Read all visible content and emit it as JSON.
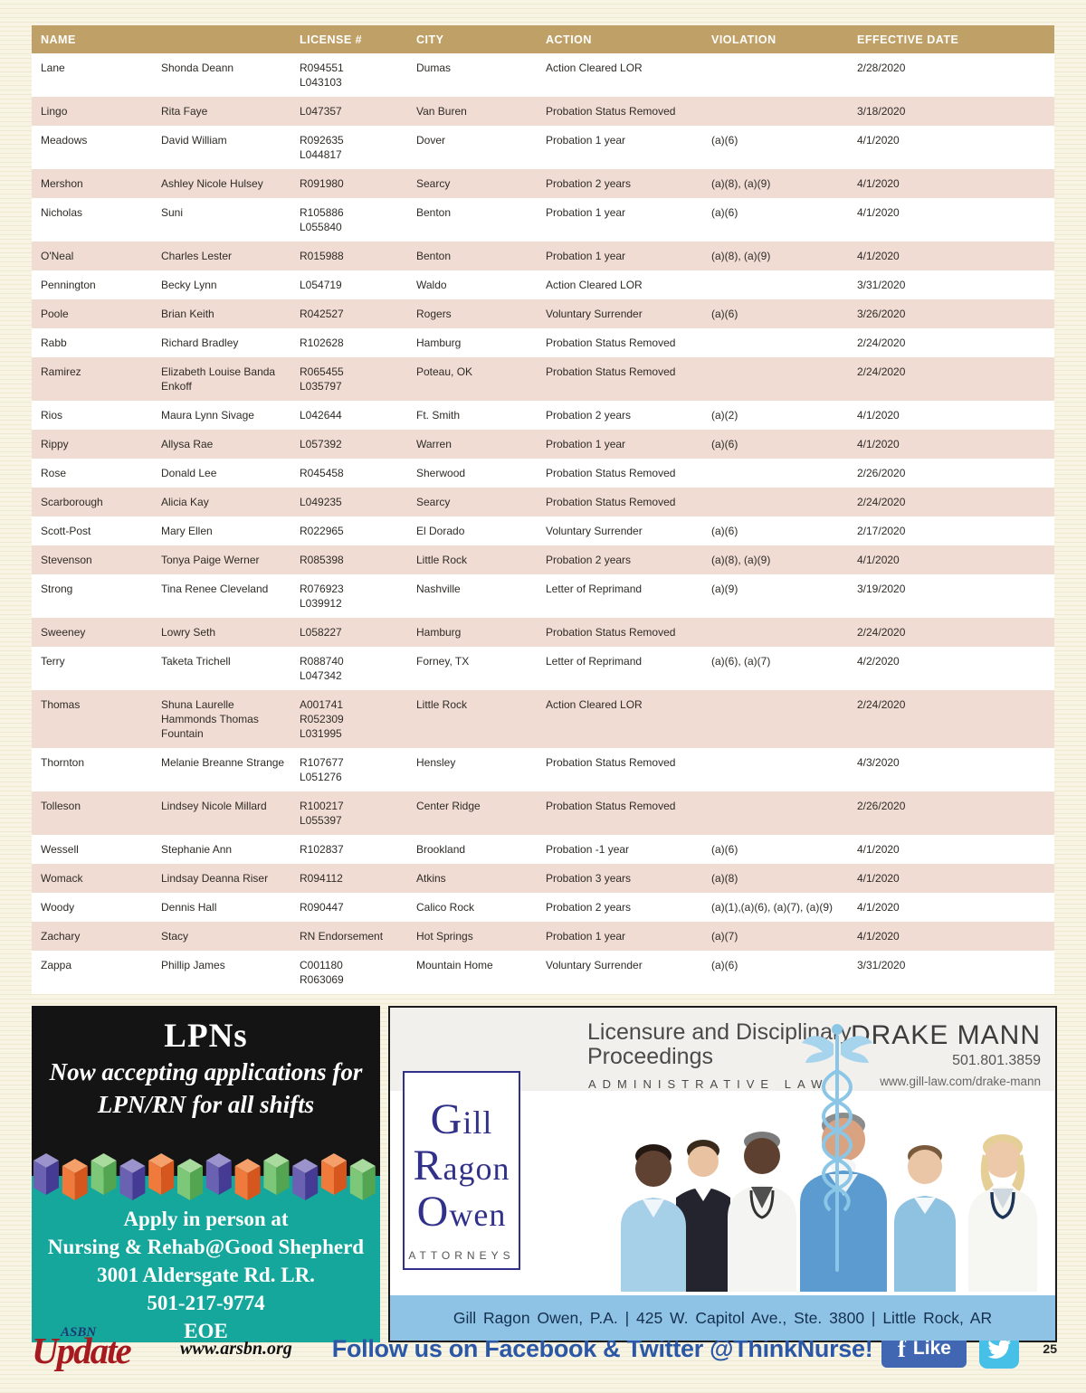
{
  "table": {
    "columns": [
      "NAME",
      "",
      "LICENSE #",
      "CITY",
      "ACTION",
      "VIOLATION",
      "EFFECTIVE DATE"
    ],
    "rows": [
      {
        "last": "Lane",
        "first": "Shonda Deann",
        "license": [
          "R094551",
          "L043103"
        ],
        "city": "Dumas",
        "action": "Action Cleared LOR",
        "violation": "",
        "date": "2/28/2020"
      },
      {
        "last": "Lingo",
        "first": "Rita Faye",
        "license": [
          "L047357"
        ],
        "city": "Van Buren",
        "action": "Probation Status Removed",
        "violation": "",
        "date": "3/18/2020"
      },
      {
        "last": "Meadows",
        "first": "David William",
        "license": [
          "R092635",
          "L044817"
        ],
        "city": "Dover",
        "action": "Probation 1 year",
        "violation": "(a)(6)",
        "date": "4/1/2020"
      },
      {
        "last": "Mershon",
        "first": "Ashley Nicole Hulsey",
        "license": [
          "R091980"
        ],
        "city": "Searcy",
        "action": "Probation 2 years",
        "violation": "(a)(8), (a)(9)",
        "date": "4/1/2020"
      },
      {
        "last": "Nicholas",
        "first": "Suni",
        "license": [
          "R105886",
          "L055840"
        ],
        "city": "Benton",
        "action": "Probation 1 year",
        "violation": "(a)(6)",
        "date": "4/1/2020"
      },
      {
        "last": "O'Neal",
        "first": "Charles Lester",
        "license": [
          "R015988"
        ],
        "city": "Benton",
        "action": "Probation 1 year",
        "violation": "(a)(8), (a)(9)",
        "date": "4/1/2020"
      },
      {
        "last": "Pennington",
        "first": "Becky Lynn",
        "license": [
          "L054719"
        ],
        "city": "Waldo",
        "action": "Action Cleared LOR",
        "violation": "",
        "date": "3/31/2020"
      },
      {
        "last": "Poole",
        "first": "Brian Keith",
        "license": [
          "R042527"
        ],
        "city": "Rogers",
        "action": "Voluntary Surrender",
        "violation": "(a)(6)",
        "date": "3/26/2020"
      },
      {
        "last": "Rabb",
        "first": "Richard Bradley",
        "license": [
          "R102628"
        ],
        "city": "Hamburg",
        "action": "Probation Status Removed",
        "violation": "",
        "date": "2/24/2020"
      },
      {
        "last": "Ramirez",
        "first": "Elizabeth Louise Banda Enkoff",
        "license": [
          "R065455",
          "L035797"
        ],
        "city": "Poteau, OK",
        "action": "Probation Status Removed",
        "violation": "",
        "date": "2/24/2020"
      },
      {
        "last": "Rios",
        "first": "Maura Lynn Sivage",
        "license": [
          "L042644"
        ],
        "city": "Ft. Smith",
        "action": "Probation 2 years",
        "violation": "(a)(2)",
        "date": "4/1/2020"
      },
      {
        "last": "Rippy",
        "first": "Allysa Rae",
        "license": [
          "L057392"
        ],
        "city": "Warren",
        "action": "Probation 1 year",
        "violation": "(a)(6)",
        "date": "4/1/2020"
      },
      {
        "last": "Rose",
        "first": "Donald Lee",
        "license": [
          "R045458"
        ],
        "city": "Sherwood",
        "action": "Probation Status Removed",
        "violation": "",
        "date": "2/26/2020"
      },
      {
        "last": "Scarborough",
        "first": "Alicia Kay",
        "license": [
          "L049235"
        ],
        "city": "Searcy",
        "action": "Probation Status Removed",
        "violation": "",
        "date": "2/24/2020"
      },
      {
        "last": "Scott-Post",
        "first": "Mary Ellen",
        "license": [
          "R022965"
        ],
        "city": "El Dorado",
        "action": "Voluntary Surrender",
        "violation": "(a)(6)",
        "date": "2/17/2020"
      },
      {
        "last": "Stevenson",
        "first": "Tonya Paige Werner",
        "license": [
          "R085398"
        ],
        "city": "Little Rock",
        "action": "Probation 2 years",
        "violation": "(a)(8), (a)(9)",
        "date": "4/1/2020"
      },
      {
        "last": "Strong",
        "first": "Tina Renee Cleveland",
        "license": [
          "R076923",
          "L039912"
        ],
        "city": "Nashville",
        "action": "Letter of Reprimand",
        "violation": "(a)(9)",
        "date": "3/19/2020"
      },
      {
        "last": "Sweeney",
        "first": "Lowry Seth",
        "license": [
          "L058227"
        ],
        "city": "Hamburg",
        "action": "Probation Status Removed",
        "violation": "",
        "date": "2/24/2020"
      },
      {
        "last": "Terry",
        "first": "Taketa Trichell",
        "license": [
          "R088740",
          "L047342"
        ],
        "city": "Forney, TX",
        "action": "Letter of Reprimand",
        "violation": "(a)(6), (a)(7)",
        "date": "4/2/2020"
      },
      {
        "last": "Thomas",
        "first": "Shuna Laurelle Hammonds Thomas Fountain",
        "license": [
          "A001741",
          "R052309",
          "L031995"
        ],
        "city": "Little Rock",
        "action": "Action Cleared LOR",
        "violation": "",
        "date": "2/24/2020"
      },
      {
        "last": "Thornton",
        "first": "Melanie Breanne Strange",
        "license": [
          "R107677",
          "L051276"
        ],
        "city": "Hensley",
        "action": "Probation Status Removed",
        "violation": "",
        "date": "4/3/2020"
      },
      {
        "last": "Tolleson",
        "first": "Lindsey Nicole Millard",
        "license": [
          "R100217",
          "L055397"
        ],
        "city": "Center Ridge",
        "action": "Probation Status Removed",
        "violation": "",
        "date": "2/26/2020"
      },
      {
        "last": "Wessell",
        "first": "Stephanie Ann",
        "license": [
          "R102837"
        ],
        "city": "Brookland",
        "action": "Probation -1 year",
        "violation": "(a)(6)",
        "date": "4/1/2020"
      },
      {
        "last": "Womack",
        "first": "Lindsay Deanna Riser",
        "license": [
          "R094112"
        ],
        "city": "Atkins",
        "action": "Probation 3 years",
        "violation": "(a)(8)",
        "date": "4/1/2020"
      },
      {
        "last": "Woody",
        "first": "Dennis Hall",
        "license": [
          "R090447"
        ],
        "city": "Calico Rock",
        "action": "Probation 2 years",
        "violation": "(a)(1),(a)(6), (a)(7), (a)(9)",
        "date": "4/1/2020"
      },
      {
        "last": "Zachary",
        "first": "Stacy",
        "license": [
          "RN Endorsement"
        ],
        "city": "Hot Springs",
        "action": "Probation 1 year",
        "violation": "(a)(7)",
        "date": "4/1/2020"
      },
      {
        "last": "Zappa",
        "first": "Phillip James",
        "license": [
          "C001180",
          "R063069"
        ],
        "city": "Mountain Home",
        "action": "Voluntary Surrender",
        "violation": "(a)(6)",
        "date": "3/31/2020"
      }
    ]
  },
  "ads": {
    "lpn": {
      "title": "LPNs",
      "line1": "Now accepting applications for",
      "line2": "LPN/RN for all shifts",
      "apply1": "Apply in person at",
      "apply2": "Nursing & Rehab@Good Shepherd",
      "address": "3001 Aldersgate Rd. LR.",
      "phone": "501-217-9774",
      "eoe": "EOE"
    },
    "gill": {
      "service1": "Licensure and Disciplinary",
      "service2": "Proceedings",
      "practice": "ADMINISTRATIVE LAW",
      "attorney": "DRAKE MANN",
      "phone": "501.801.3859",
      "url": "www.gill-law.com/drake-mann",
      "firm1": "Gill",
      "firm2": "Ragon",
      "firm3": "Owen",
      "firm_sub": "ATTORNEYS",
      "bar_text": "Gill Ragon Owen, P.A. | 425 W. Capitol Ave., Ste. 3800 | Little Rock, AR"
    }
  },
  "footer": {
    "logo_top": "ASBN",
    "logo_main": "Update",
    "site": "www.arsbn.org",
    "follow": "Follow us on Facebook & Twitter @ThinkNurse!",
    "fb_f": "f",
    "like_label": "Like",
    "page_number": "25"
  },
  "colors": {
    "header_gold": "#bfa066",
    "row_pink": "#f0dcd3",
    "teal": "#15a79c",
    "facebook_blue": "#4267b2",
    "twitter_blue": "#47c0e8",
    "follow_blue": "#2b57a7",
    "logo_red": "#a6191f",
    "firm_navy": "#31318a"
  }
}
